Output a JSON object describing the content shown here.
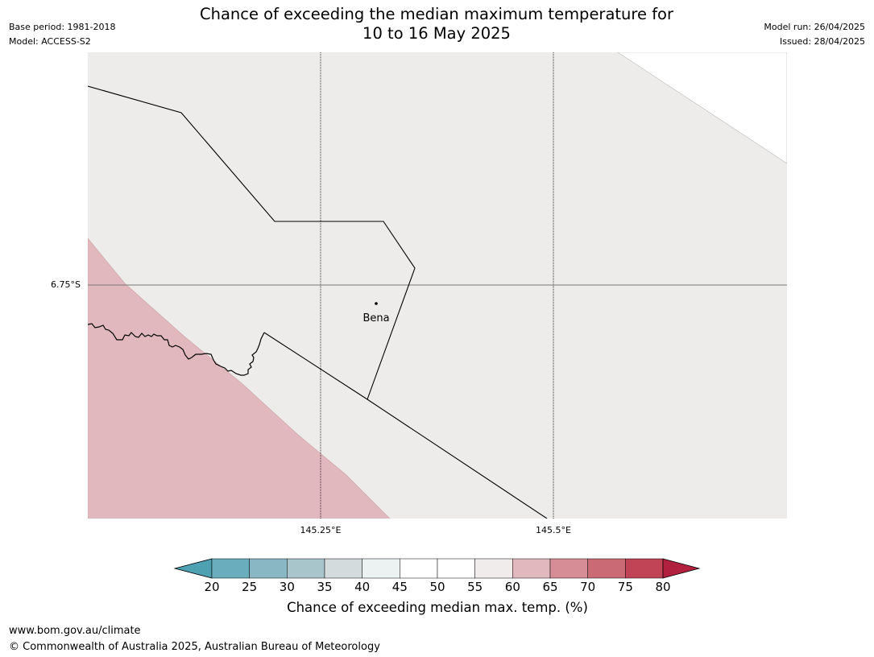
{
  "header": {
    "base_period": "Base period: 1981-2018",
    "model": "Model: ACCESS-S2",
    "title_line1": "Chance of exceeding the median maximum temperature for",
    "title_line2": "10 to 16 May 2025",
    "model_run": "Model run: 26/04/2025",
    "issued": "Issued: 28/04/2025"
  },
  "map": {
    "longitude_labels": [
      "145.25°E",
      "145.5°E"
    ],
    "latitude_labels": [
      "6.75°S"
    ],
    "place": "Bena",
    "background_color": "#edecea",
    "elevated_zone_color": "#e1b8bd",
    "elevated_zone_category": "60-65"
  },
  "legend": {
    "ticks": [
      "20",
      "25",
      "30",
      "35",
      "40",
      "45",
      "50",
      "55",
      "60",
      "65",
      "70",
      "75",
      "80"
    ],
    "low_extension_color": "#4da1b1",
    "high_extension_color": "#b1213f",
    "colors": [
      "#6aaebd",
      "#89b7c4",
      "#a7c5cb",
      "#d3dbdc",
      "#ecf1f2",
      "#ffffff",
      "#ffffff",
      "#efeceb",
      "#e1b8bd",
      "#d68d95",
      "#ca6a75",
      "#c04456"
    ],
    "label": "Chance of exceeding median max. temp. (%)"
  },
  "footer": {
    "url": "www.bom.gov.au/climate",
    "copyright": "© Commonwealth of Australia 2025, Australian Bureau of Meteorology"
  }
}
